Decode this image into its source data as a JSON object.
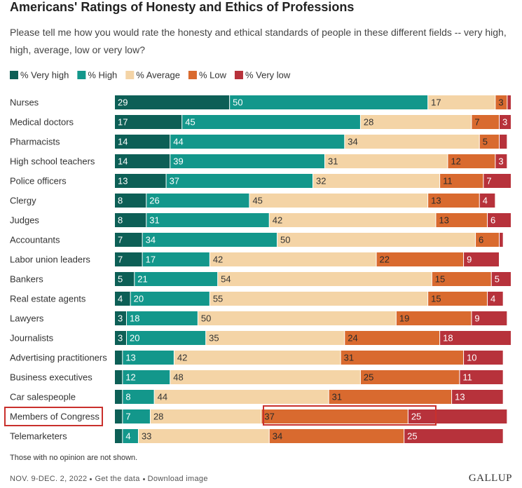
{
  "chart_data": {
    "type": "stacked-barh",
    "title": "Americans' Ratings of Honesty and Ethics of Professions",
    "subtitle": "Please tell me how you would rate the honesty and ethical standards of people in these different fields -- very high, high, average, low or very low?",
    "categories": [
      "Nurses",
      "Medical doctors",
      "Pharmacists",
      "High school teachers",
      "Police officers",
      "Clergy",
      "Judges",
      "Accountants",
      "Labor union leaders",
      "Bankers",
      "Real estate agents",
      "Lawyers",
      "Journalists",
      "Advertising practitioners",
      "Business executives",
      "Car salespeople",
      "Members of Congress",
      "Telemarketers"
    ],
    "xlim": [
      0,
      100
    ],
    "series": [
      {
        "name": "% Very high",
        "color": "#0d5f56",
        "values": [
          29,
          17,
          14,
          14,
          13,
          8,
          8,
          7,
          7,
          5,
          4,
          3,
          3,
          2,
          2,
          2,
          2,
          2
        ],
        "value_labels": [
          29,
          17,
          14,
          14,
          13,
          8,
          8,
          7,
          7,
          5,
          4,
          3,
          3,
          null,
          null,
          null,
          null,
          null
        ]
      },
      {
        "name": "% High",
        "color": "#13978b",
        "values": [
          50,
          45,
          44,
          39,
          37,
          26,
          31,
          34,
          17,
          21,
          20,
          18,
          20,
          13,
          12,
          8,
          7,
          4
        ],
        "value_labels": [
          50,
          45,
          44,
          39,
          37,
          26,
          31,
          34,
          17,
          21,
          20,
          18,
          20,
          13,
          12,
          8,
          7,
          4
        ]
      },
      {
        "name": "% Average",
        "color": "#f4d4a6",
        "values": [
          17,
          28,
          34,
          31,
          32,
          45,
          42,
          50,
          42,
          54,
          55,
          50,
          35,
          42,
          48,
          44,
          28,
          33
        ],
        "value_labels": [
          17,
          28,
          34,
          31,
          32,
          45,
          42,
          50,
          42,
          54,
          55,
          50,
          35,
          42,
          48,
          44,
          28,
          33
        ]
      },
      {
        "name": "% Low",
        "color": "#d96a2f",
        "values": [
          3,
          7,
          5,
          12,
          11,
          13,
          13,
          6,
          22,
          15,
          15,
          19,
          24,
          31,
          25,
          31,
          37,
          34
        ],
        "value_labels": [
          3,
          7,
          5,
          12,
          11,
          13,
          13,
          6,
          22,
          15,
          15,
          19,
          24,
          31,
          25,
          31,
          37,
          34
        ]
      },
      {
        "name": "% Very low",
        "color": "#b7323b",
        "values": [
          1,
          3,
          2,
          3,
          7,
          4,
          6,
          1,
          9,
          5,
          4,
          9,
          18,
          10,
          11,
          13,
          25,
          25
        ],
        "value_labels": [
          null,
          3,
          null,
          3,
          7,
          4,
          6,
          null,
          9,
          5,
          4,
          9,
          18,
          10,
          11,
          13,
          25,
          25
        ]
      }
    ],
    "note": "Those with no opinion are not shown.",
    "footer": {
      "date": "NOV. 9-DEC. 2, 2022",
      "links": [
        "Get the data",
        "Download image"
      ],
      "brand": "GALLUP"
    }
  }
}
